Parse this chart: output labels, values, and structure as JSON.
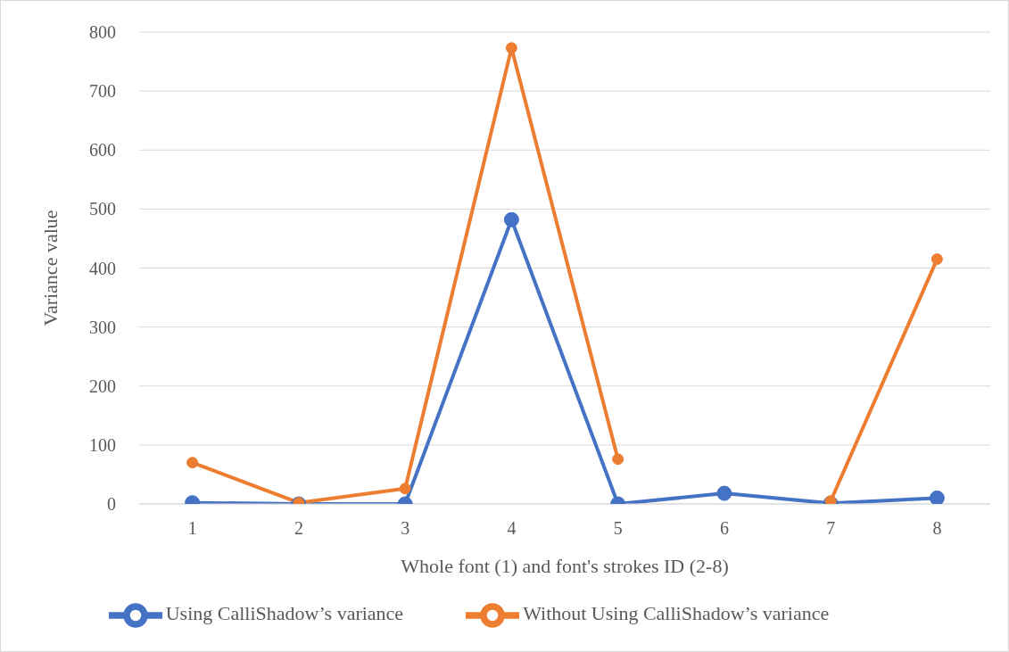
{
  "chart_data": {
    "type": "line",
    "xlabel": "Whole font (1) and font's strokes ID (2-8)",
    "ylabel": "Variance value",
    "categories": [
      "1",
      "2",
      "3",
      "4",
      "5",
      "6",
      "7",
      "8"
    ],
    "series": [
      {
        "name": "Using CalliShadow’s variance",
        "color": "#4472c4",
        "values": [
          2,
          0,
          0,
          482,
          0,
          18,
          1,
          10
        ]
      },
      {
        "name": "Without Using CalliShadow’s variance",
        "color": "#ed7d31",
        "values": [
          70,
          2,
          26,
          773,
          76,
          null,
          5,
          415
        ]
      }
    ],
    "ylim": [
      0,
      800
    ],
    "yticks": [
      0,
      100,
      200,
      300,
      400,
      500,
      600,
      700,
      800
    ],
    "grid": "y",
    "legend": "bottom",
    "marker": "circle",
    "line_style": "solid"
  }
}
